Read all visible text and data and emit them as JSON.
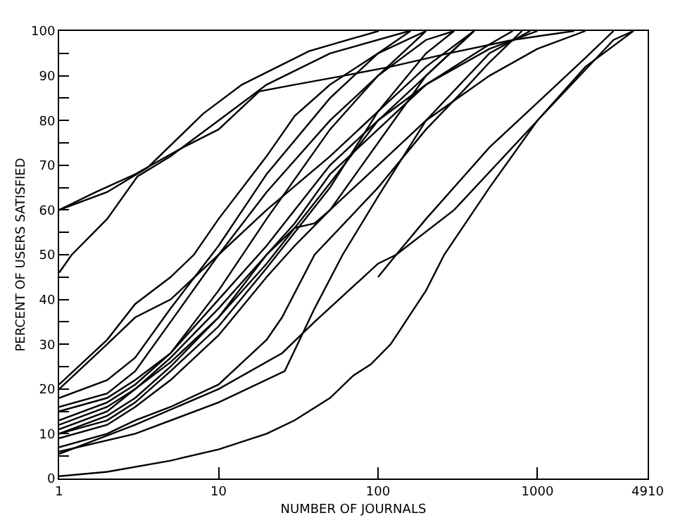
{
  "chart_data": {
    "type": "line",
    "xlabel": "NUMBER OF JOURNALS",
    "ylabel": "PERCENT OF USERS SATISFIED",
    "log": "x",
    "grid": false,
    "marker": "none",
    "line_style": "solid",
    "xlim": [
      1,
      4910
    ],
    "xticks": [
      1,
      10,
      100,
      1000,
      4910
    ],
    "ylim": [
      0,
      100
    ],
    "yticks": [
      0,
      {
        "value": 5,
        "label": null
      },
      10,
      {
        "value": 15,
        "label": null
      },
      20,
      {
        "value": 25,
        "label": null
      },
      30,
      {
        "value": 35,
        "label": null
      },
      40,
      {
        "value": 45,
        "label": null
      },
      50,
      {
        "value": 55,
        "label": null
      },
      60,
      {
        "value": 65,
        "label": null
      },
      70,
      {
        "value": 75,
        "label": null
      },
      80,
      {
        "value": 85,
        "label": null
      },
      90,
      {
        "value": 95,
        "label": null
      },
      100
    ],
    "series": [
      {
        "color": "#000000",
        "x": [
          1,
          1.7,
          3,
          6,
          10,
          18,
          30,
          61,
          120,
          276,
          700,
          1700
        ],
        "values": [
          60,
          64,
          68,
          74,
          78,
          86.5,
          88,
          90,
          92,
          95,
          98,
          100
        ]
      },
      {
        "color": "#000000",
        "x": [
          1,
          2,
          3.6,
          8,
          14,
          37,
          101
        ],
        "values": [
          60,
          64,
          69.5,
          81.5,
          88,
          95.5,
          100
        ]
      },
      {
        "color": "#000000",
        "x": [
          1,
          1.2,
          2,
          3.1,
          5,
          10,
          20,
          50,
          157
        ],
        "values": [
          46,
          50,
          58,
          67.5,
          72,
          80,
          88,
          95,
          100
        ]
      },
      {
        "color": "#000000",
        "x": [
          1,
          2,
          3,
          5,
          7,
          10,
          20,
          30,
          50,
          100,
          160
        ],
        "values": [
          21,
          31,
          39,
          45,
          50,
          58,
          72,
          81,
          88,
          95,
          100
        ]
      },
      {
        "color": "#000000",
        "x": [
          1,
          2,
          3,
          5,
          10,
          20,
          50,
          100,
          200,
          400
        ],
        "values": [
          20,
          30,
          36,
          40,
          50,
          60,
          72,
          82,
          92,
          100
        ]
      },
      {
        "color": "#000000",
        "x": [
          1,
          2,
          3,
          5,
          10,
          20,
          50,
          100,
          200
        ],
        "values": [
          18,
          22,
          27,
          38,
          52,
          68,
          85,
          95,
          100
        ]
      },
      {
        "color": "#000000",
        "x": [
          1,
          2,
          3,
          5,
          10,
          20,
          50,
          100,
          200,
          300
        ],
        "values": [
          16,
          19,
          24,
          35,
          50,
          64,
          80,
          90,
          98,
          100
        ]
      },
      {
        "color": "#000000",
        "x": [
          1,
          2,
          3,
          5,
          10,
          20,
          50,
          100,
          200
        ],
        "values": [
          15,
          18,
          22,
          28,
          42,
          58,
          78,
          90,
          100
        ]
      },
      {
        "color": "#000000",
        "x": [
          1,
          2,
          3,
          5,
          10,
          20,
          30,
          50,
          100,
          200,
          500,
          1000
        ],
        "values": [
          13,
          17,
          21,
          28,
          40,
          52,
          60,
          70,
          80,
          88,
          96,
          100
        ]
      },
      {
        "color": "#000000",
        "x": [
          1,
          2,
          3,
          5,
          10,
          20,
          30,
          50,
          100,
          200,
          500,
          700
        ],
        "values": [
          12,
          16,
          20,
          26,
          36,
          50,
          57,
          68,
          78,
          88,
          97,
          100
        ]
      },
      {
        "color": "#000000",
        "x": [
          1,
          2,
          3,
          5,
          10,
          20,
          50,
          100,
          200,
          400
        ],
        "values": [
          10,
          14,
          18,
          25,
          36,
          48,
          66,
          80,
          90,
          100
        ]
      },
      {
        "color": "#000000",
        "x": [
          1,
          2,
          3,
          5,
          10,
          20,
          50,
          100,
          200,
          300
        ],
        "values": [
          10,
          13,
          17,
          24,
          34,
          47,
          65,
          82,
          95,
          100
        ]
      },
      {
        "color": "#000000",
        "x": [
          1,
          2,
          3,
          5,
          10,
          20,
          30,
          50,
          100,
          200,
          400
        ],
        "values": [
          9,
          12,
          16,
          22,
          32,
          45,
          52,
          60,
          75,
          90,
          100
        ]
      },
      {
        "color": "#000000",
        "x": [
          1,
          2,
          3,
          5,
          10,
          20,
          30,
          40,
          50,
          100,
          200,
          500,
          1000,
          2000
        ],
        "values": [
          11,
          15,
          20,
          27,
          38,
          50,
          56,
          57,
          60,
          70,
          80,
          90,
          96,
          100
        ]
      },
      {
        "color": "#000000",
        "x": [
          1,
          2,
          3,
          5,
          10,
          20,
          25,
          40,
          100,
          200,
          350,
          500,
          800
        ],
        "values": [
          7,
          10,
          13,
          16,
          21,
          31,
          36,
          50,
          65,
          78,
          87,
          93,
          100
        ]
      },
      {
        "color": "#000000",
        "x": [
          1,
          3,
          10,
          26,
          40,
          60,
          100,
          200,
          500,
          900
        ],
        "values": [
          6,
          10,
          17,
          24,
          38,
          50,
          63,
          80,
          95,
          100
        ]
      },
      {
        "color": "#000000",
        "x": [
          1,
          3,
          10,
          25,
          40,
          100,
          130,
          300,
          1000,
          3000,
          4000
        ],
        "values": [
          5.5,
          12,
          20,
          28,
          35,
          48,
          50,
          60,
          80,
          98,
          100
        ]
      },
      {
        "color": "#000000",
        "x": [
          100,
          130,
          200,
          500,
          1000,
          2000,
          3000
        ],
        "values": [
          45,
          50,
          58,
          74,
          84,
          94,
          100
        ]
      },
      {
        "color": "#000000",
        "x": [
          1,
          2,
          5,
          10,
          20,
          30,
          50,
          70,
          90,
          120,
          200,
          260,
          500,
          1000,
          2000,
          4000
        ],
        "values": [
          0.5,
          1.5,
          4,
          6.5,
          10,
          13,
          18,
          23,
          25.5,
          30,
          42,
          50,
          65,
          80,
          92,
          100
        ]
      }
    ]
  }
}
